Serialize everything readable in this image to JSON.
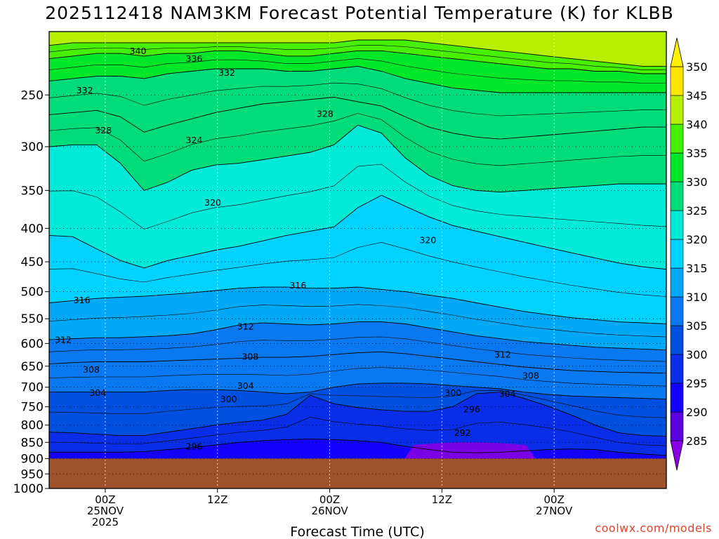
{
  "chart_data": {
    "type": "heatmap",
    "title": "2025112418 NAM3KM Forecast Potential Temperature (K) for KLBB",
    "xlabel": "Forecast Time (UTC)",
    "ylabel": "",
    "y_axis": {
      "scale": "log-pressure",
      "ylim": [
        1000,
        200
      ],
      "ticks": [
        250,
        300,
        350,
        400,
        450,
        500,
        550,
        600,
        650,
        700,
        750,
        800,
        850,
        900,
        950,
        1000
      ],
      "gridlines": "dotted"
    },
    "x_axis": {
      "start": "2025-11-24 18Z",
      "end": "2025-11-27 12Z",
      "ticks": [
        {
          "hour": 6,
          "line1": "00Z",
          "line2": "25NOV",
          "line3": "2025"
        },
        {
          "hour": 18,
          "line1": "12Z",
          "line2": "",
          "line3": ""
        },
        {
          "hour": 30,
          "line1": "00Z",
          "line2": "26NOV",
          "line3": ""
        },
        {
          "hour": 42,
          "line1": "12Z",
          "line2": "",
          "line3": ""
        },
        {
          "hour": 54,
          "line1": "00Z",
          "line2": "27NOV",
          "line3": ""
        }
      ],
      "gridlines": "dotted"
    },
    "colorbar": {
      "levels": [
        285,
        290,
        295,
        300,
        305,
        310,
        315,
        320,
        325,
        330,
        335,
        340,
        345,
        350
      ],
      "colors": [
        "#8a00e6",
        "#5a00e0",
        "#1400ff",
        "#0a2ee8",
        "#0050e0",
        "#0a78f0",
        "#00a8f5",
        "#00d2ff",
        "#00ead8",
        "#00dc7a",
        "#00e628",
        "#46f000",
        "#b4f000",
        "#ffe600",
        "#fff200"
      ]
    },
    "surface": {
      "pressure": 900,
      "color": "#a0522d"
    },
    "isentropes": [
      {
        "theta": 296,
        "pressures": [
          880,
          880,
          880,
          880,
          878,
          872,
          866,
          858,
          850,
          845,
          842,
          840,
          842,
          845,
          850,
          862,
          872,
          880,
          882,
          880,
          876,
          872,
          870,
          872,
          880,
          886,
          890
        ]
      },
      {
        "theta": 300,
        "pressures": [
          820,
          822,
          826,
          830,
          830,
          820,
          810,
          800,
          792,
          786,
          770,
          720,
          742,
          752,
          758,
          762,
          762,
          750,
          716,
          712,
          728,
          748,
          772,
          800,
          822,
          830,
          832
        ]
      },
      {
        "theta": 304,
        "pressures": [
          712,
          712,
          712,
          712,
          712,
          708,
          706,
          706,
          708,
          712,
          716,
          712,
          700,
          692,
          690,
          690,
          692,
          696,
          700,
          704,
          712,
          718,
          722,
          724,
          726,
          728,
          730
        ]
      },
      {
        "theta": 308,
        "pressures": [
          645,
          642,
          640,
          640,
          640,
          638,
          636,
          634,
          632,
          630,
          630,
          628,
          624,
          620,
          618,
          622,
          628,
          634,
          640,
          646,
          652,
          656,
          660,
          662,
          664,
          665,
          666
        ]
      },
      {
        "theta": 312,
        "pressures": [
          592,
          590,
          588,
          588,
          586,
          584,
          580,
          572,
          562,
          558,
          560,
          562,
          560,
          556,
          556,
          560,
          568,
          576,
          584,
          590,
          596,
          600,
          604,
          608,
          610,
          612,
          614
        ]
      },
      {
        "theta": 316,
        "pressures": [
          520,
          516,
          512,
          510,
          508,
          505,
          502,
          498,
          494,
          492,
          492,
          494,
          494,
          492,
          496,
          500,
          506,
          512,
          520,
          528,
          536,
          542,
          548,
          552,
          556,
          558,
          560
        ]
      },
      {
        "theta": 320,
        "pressures": [
          410,
          412,
          430,
          448,
          460,
          448,
          440,
          432,
          426,
          418,
          410,
          404,
          398,
          372,
          356,
          370,
          384,
          396,
          404,
          412,
          420,
          428,
          436,
          444,
          452,
          458,
          462
        ]
      },
      {
        "theta": 324,
        "pressures": [
          300,
          298,
          298,
          318,
          350,
          340,
          326,
          320,
          318,
          314,
          310,
          306,
          298,
          278,
          286,
          312,
          332,
          344,
          350,
          352,
          350,
          348,
          346,
          344,
          342,
          342,
          342
        ]
      },
      {
        "theta": 328,
        "pressures": [
          268,
          266,
          264,
          270,
          285,
          278,
          272,
          266,
          262,
          258,
          256,
          254,
          252,
          256,
          260,
          270,
          280,
          286,
          290,
          292,
          290,
          288,
          286,
          284,
          282,
          280,
          280
        ]
      },
      {
        "theta": 332,
        "pressures": [
          238,
          236,
          234,
          234,
          236,
          232,
          230,
          228,
          228,
          228,
          230,
          230,
          228,
          226,
          230,
          236,
          240,
          244,
          246,
          248,
          248,
          248,
          248,
          248,
          248,
          248,
          248
        ]
      },
      {
        "theta": 336,
        "pressures": [
          220,
          218,
          216,
          216,
          218,
          216,
          216,
          214,
          214,
          216,
          218,
          218,
          216,
          214,
          214,
          216,
          218,
          220,
          222,
          224,
          226,
          228,
          228,
          230,
          230,
          232,
          232
        ]
      },
      {
        "theta": 340,
        "pressures": [
          210,
          208,
          208,
          208,
          208,
          208,
          208,
          208,
          208,
          208,
          208,
          208,
          208,
          206,
          206,
          206,
          208,
          210,
          212,
          214,
          216,
          218,
          220,
          222,
          224,
          226,
          226
        ]
      }
    ],
    "contour_labels": [
      {
        "text": "340",
        "hour": 9.5,
        "pressure": 214
      },
      {
        "text": "336",
        "hour": 15.5,
        "pressure": 220
      },
      {
        "text": "332",
        "hour": 19,
        "pressure": 231
      },
      {
        "text": "332",
        "hour": 3.8,
        "pressure": 246
      },
      {
        "text": "328",
        "hour": 29.5,
        "pressure": 267
      },
      {
        "text": "328",
        "hour": 5.8,
        "pressure": 283
      },
      {
        "text": "324",
        "hour": 15.5,
        "pressure": 293
      },
      {
        "text": "320",
        "hour": 17.5,
        "pressure": 365
      },
      {
        "text": "320",
        "hour": 40.5,
        "pressure": 417
      },
      {
        "text": "316",
        "hour": 26.6,
        "pressure": 489
      },
      {
        "text": "316",
        "hour": 3.5,
        "pressure": 515
      },
      {
        "text": "312",
        "hour": 21,
        "pressure": 565
      },
      {
        "text": "312",
        "hour": 1.5,
        "pressure": 592
      },
      {
        "text": "312",
        "hour": 48.5,
        "pressure": 624
      },
      {
        "text": "308",
        "hour": 21.5,
        "pressure": 628
      },
      {
        "text": "308",
        "hour": 4.5,
        "pressure": 658
      },
      {
        "text": "308",
        "hour": 51.5,
        "pressure": 672
      },
      {
        "text": "304",
        "hour": 21,
        "pressure": 696
      },
      {
        "text": "304",
        "hour": 5.2,
        "pressure": 714
      },
      {
        "text": "304",
        "hour": 49,
        "pressure": 716
      },
      {
        "text": "300",
        "hour": 19.2,
        "pressure": 730
      },
      {
        "text": "300",
        "hour": 43.2,
        "pressure": 714
      },
      {
        "text": "296",
        "hour": 45.2,
        "pressure": 756
      },
      {
        "text": "292",
        "hour": 44.2,
        "pressure": 822
      },
      {
        "text": "296",
        "hour": 15.5,
        "pressure": 862
      }
    ]
  },
  "footer": {
    "credit": "coolwx.com/models"
  }
}
